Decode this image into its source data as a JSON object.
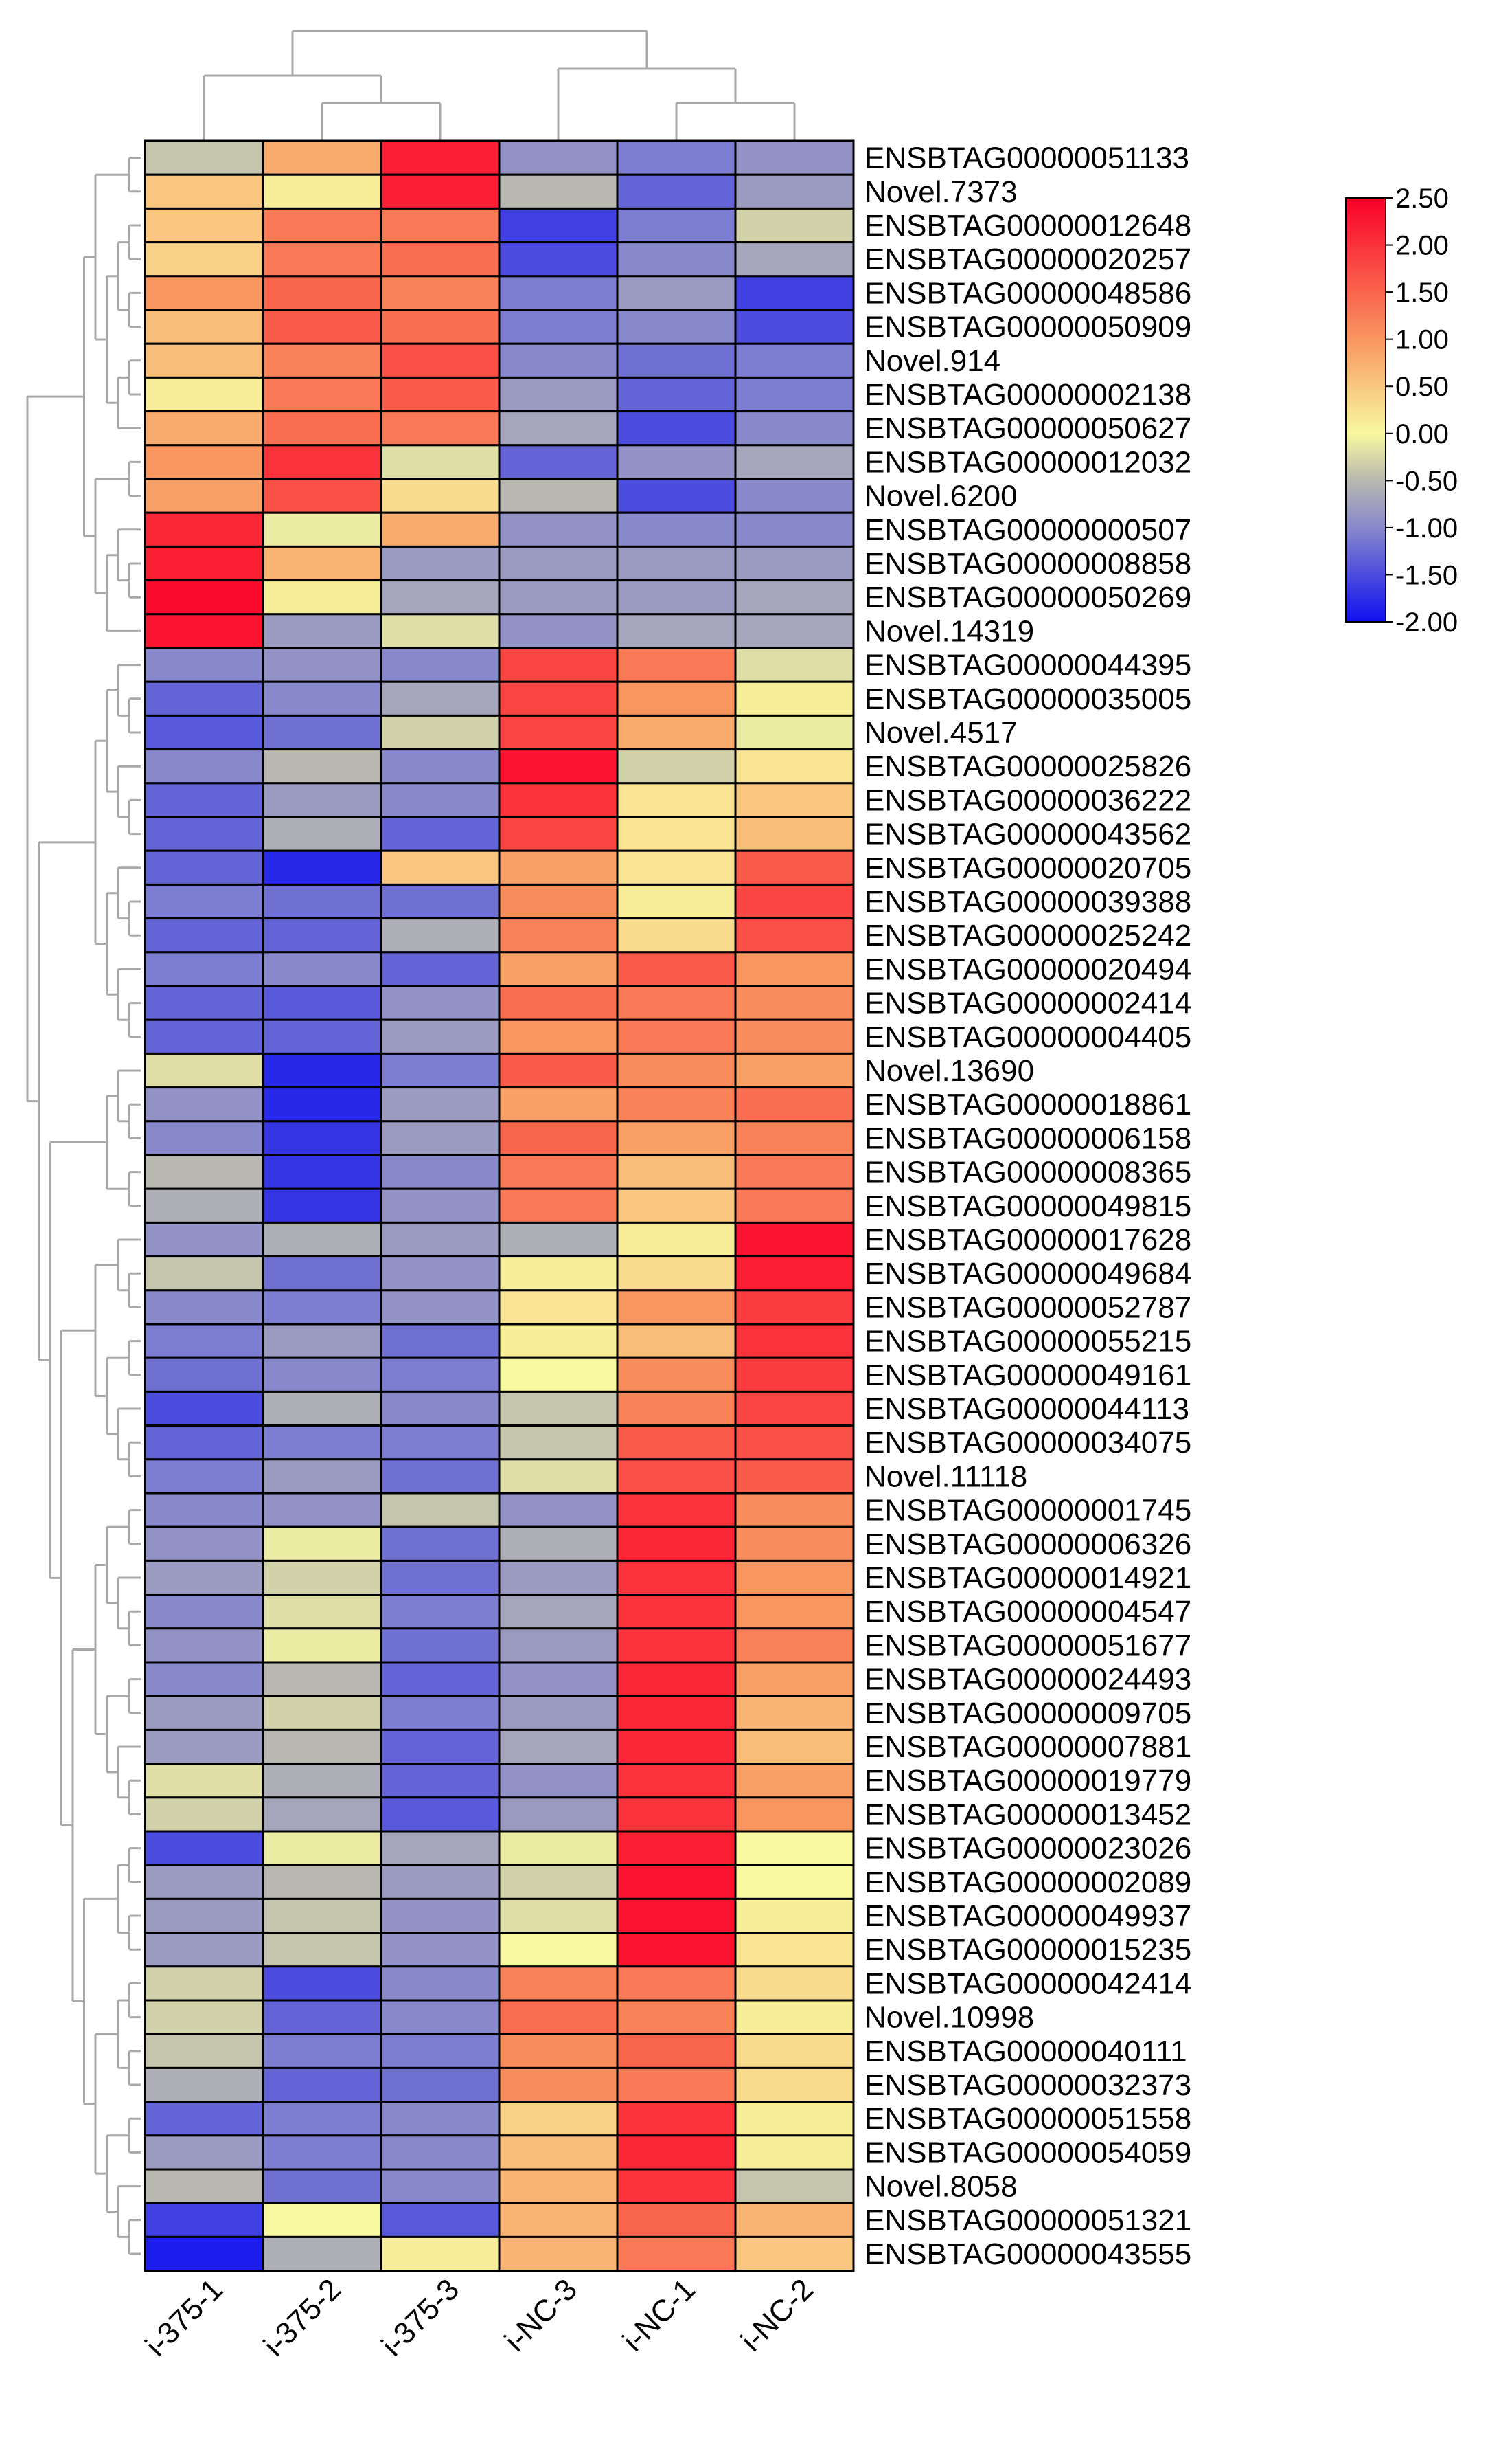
{
  "chart_data": {
    "type": "heatmap",
    "columns": [
      "i-375-1",
      "i-375-2",
      "i-375-3",
      "i-NC-3",
      "i-NC-1",
      "i-NC-2"
    ],
    "rows": [
      "ENSBTAG00000051133",
      "Novel.7373",
      "ENSBTAG00000012648",
      "ENSBTAG00000020257",
      "ENSBTAG00000048586",
      "ENSBTAG00000050909",
      "Novel.914",
      "ENSBTAG00000002138",
      "ENSBTAG00000050627",
      "ENSBTAG00000012032",
      "Novel.6200",
      "ENSBTAG00000000507",
      "ENSBTAG00000008858",
      "ENSBTAG00000050269",
      "Novel.14319",
      "ENSBTAG00000044395",
      "ENSBTAG00000035005",
      "Novel.4517",
      "ENSBTAG00000025826",
      "ENSBTAG00000036222",
      "ENSBTAG00000043562",
      "ENSBTAG00000020705",
      "ENSBTAG00000039388",
      "ENSBTAG00000025242",
      "ENSBTAG00000020494",
      "ENSBTAG00000002414",
      "ENSBTAG00000004405",
      "Novel.13690",
      "ENSBTAG00000018861",
      "ENSBTAG00000006158",
      "ENSBTAG00000008365",
      "ENSBTAG00000049815",
      "ENSBTAG00000017628",
      "ENSBTAG00000049684",
      "ENSBTAG00000052787",
      "ENSBTAG00000055215",
      "ENSBTAG00000049161",
      "ENSBTAG00000044113",
      "ENSBTAG00000034075",
      "Novel.11118",
      "ENSBTAG00000001745",
      "ENSBTAG00000006326",
      "ENSBTAG00000014921",
      "ENSBTAG00000004547",
      "ENSBTAG00000051677",
      "ENSBTAG00000024493",
      "ENSBTAG00000009705",
      "ENSBTAG00000007881",
      "ENSBTAG00000019779",
      "ENSBTAG00000013452",
      "ENSBTAG00000023026",
      "ENSBTAG00000002089",
      "ENSBTAG00000049937",
      "ENSBTAG00000015235",
      "ENSBTAG00000042414",
      "Novel.10998",
      "ENSBTAG00000040111",
      "ENSBTAG00000032373",
      "ENSBTAG00000051558",
      "ENSBTAG00000054059",
      "Novel.8058",
      "ENSBTAG00000051321",
      "ENSBTAG00000043555"
    ],
    "values": [
      [
        -0.4,
        0.8,
        2.2,
        -0.9,
        -1.1,
        -0.9
      ],
      [
        0.5,
        0.1,
        2.2,
        -0.5,
        -1.3,
        -0.8
      ],
      [
        0.5,
        1.3,
        1.3,
        -1.6,
        -1.1,
        -0.3
      ],
      [
        0.4,
        1.3,
        1.4,
        -1.5,
        -1.0,
        -0.7
      ],
      [
        1.0,
        1.5,
        1.2,
        -1.1,
        -0.8,
        -1.6
      ],
      [
        0.6,
        1.6,
        1.4,
        -1.1,
        -1.0,
        -1.5
      ],
      [
        0.6,
        1.2,
        1.7,
        -1.0,
        -1.2,
        -1.1
      ],
      [
        0.1,
        1.3,
        1.6,
        -0.8,
        -1.3,
        -1.1
      ],
      [
        0.8,
        1.4,
        1.3,
        -0.7,
        -1.5,
        -1.0
      ],
      [
        1.0,
        2.0,
        -0.2,
        -1.3,
        -0.9,
        -0.7
      ],
      [
        0.9,
        1.7,
        0.3,
        -0.5,
        -1.5,
        -1.0
      ],
      [
        2.1,
        -0.1,
        0.8,
        -0.9,
        -1.0,
        -1.0
      ],
      [
        2.2,
        0.7,
        -0.8,
        -0.8,
        -0.8,
        -0.8
      ],
      [
        2.4,
        0.1,
        -0.7,
        -0.8,
        -0.8,
        -0.7
      ],
      [
        2.3,
        -0.8,
        -0.2,
        -0.9,
        -0.7,
        -0.7
      ],
      [
        -1.0,
        -0.9,
        -1.0,
        1.8,
        1.3,
        -0.2
      ],
      [
        -1.3,
        -1.0,
        -0.7,
        1.8,
        1.0,
        0.1
      ],
      [
        -1.4,
        -1.2,
        -0.3,
        1.8,
        0.8,
        -0.1
      ],
      [
        -1.0,
        -0.5,
        -1.0,
        2.3,
        -0.3,
        0.2
      ],
      [
        -1.3,
        -0.8,
        -1.0,
        2.0,
        0.2,
        0.5
      ],
      [
        -1.3,
        -0.6,
        -1.3,
        1.8,
        0.2,
        0.6
      ],
      [
        -1.3,
        -1.8,
        0.5,
        0.9,
        0.2,
        1.6
      ],
      [
        -1.1,
        -1.2,
        -1.2,
        1.1,
        0.1,
        1.8
      ],
      [
        -1.3,
        -1.3,
        -0.6,
        1.2,
        0.3,
        1.7
      ],
      [
        -1.1,
        -1.0,
        -1.3,
        0.9,
        1.6,
        1.0
      ],
      [
        -1.3,
        -1.4,
        -0.9,
        1.4,
        1.3,
        1.1
      ],
      [
        -1.3,
        -1.3,
        -0.8,
        1.0,
        1.3,
        1.1
      ],
      [
        -0.2,
        -1.8,
        -1.1,
        1.6,
        1.1,
        0.9
      ],
      [
        -0.9,
        -1.8,
        -0.8,
        0.9,
        1.2,
        1.4
      ],
      [
        -1.0,
        -1.7,
        -0.8,
        1.5,
        0.9,
        1.2
      ],
      [
        -0.5,
        -1.7,
        -1.0,
        1.3,
        0.6,
        1.3
      ],
      [
        -0.6,
        -1.7,
        -0.9,
        1.3,
        0.5,
        1.3
      ],
      [
        -0.9,
        -0.6,
        -0.8,
        -0.6,
        0.1,
        2.3
      ],
      [
        -0.4,
        -1.2,
        -0.9,
        0.1,
        0.3,
        2.2
      ],
      [
        -1.0,
        -1.1,
        -0.9,
        0.2,
        1.0,
        1.9
      ],
      [
        -1.1,
        -0.8,
        -1.2,
        0.1,
        0.6,
        2.0
      ],
      [
        -1.2,
        -1.0,
        -1.1,
        0.0,
        1.1,
        1.9
      ],
      [
        -1.5,
        -0.6,
        -1.0,
        -0.4,
        1.2,
        1.8
      ],
      [
        -1.3,
        -1.1,
        -1.1,
        -0.4,
        1.6,
        1.7
      ],
      [
        -1.1,
        -0.8,
        -1.2,
        -0.2,
        1.7,
        1.6
      ],
      [
        -1.0,
        -0.9,
        -0.4,
        -0.9,
        2.0,
        1.1
      ],
      [
        -0.9,
        -0.1,
        -1.2,
        -0.6,
        2.1,
        1.1
      ],
      [
        -0.8,
        -0.3,
        -1.2,
        -0.8,
        2.0,
        1.0
      ],
      [
        -1.0,
        -0.2,
        -1.1,
        -0.7,
        2.0,
        1.0
      ],
      [
        -0.9,
        -0.1,
        -1.2,
        -0.8,
        2.0,
        1.2
      ],
      [
        -1.0,
        -0.5,
        -1.3,
        -0.9,
        2.1,
        0.9
      ],
      [
        -0.8,
        -0.3,
        -1.1,
        -0.8,
        2.1,
        0.7
      ],
      [
        -0.8,
        -0.5,
        -1.3,
        -0.7,
        2.1,
        0.6
      ],
      [
        -0.2,
        -0.6,
        -1.3,
        -0.9,
        2.0,
        0.9
      ],
      [
        -0.3,
        -0.7,
        -1.4,
        -0.8,
        2.0,
        1.0
      ],
      [
        -1.5,
        -0.1,
        -0.7,
        -0.1,
        2.2,
        0.0
      ],
      [
        -0.8,
        -0.5,
        -0.8,
        -0.3,
        2.3,
        0.0
      ],
      [
        -0.8,
        -0.4,
        -0.9,
        -0.2,
        2.3,
        0.1
      ],
      [
        -0.8,
        -0.4,
        -0.9,
        0.0,
        2.3,
        0.2
      ],
      [
        -0.3,
        -1.5,
        -1.0,
        1.2,
        1.3,
        0.3
      ],
      [
        -0.3,
        -1.3,
        -1.0,
        1.4,
        1.2,
        0.1
      ],
      [
        -0.4,
        -1.1,
        -1.1,
        1.1,
        1.5,
        0.3
      ],
      [
        -0.6,
        -1.3,
        -1.2,
        1.1,
        1.3,
        0.3
      ],
      [
        -1.3,
        -1.1,
        -1.0,
        0.4,
        2.0,
        0.1
      ],
      [
        -0.8,
        -1.1,
        -1.0,
        0.6,
        2.1,
        0.1
      ],
      [
        -0.5,
        -1.2,
        -1.0,
        0.7,
        2.0,
        -0.4
      ],
      [
        -1.6,
        0.0,
        -1.4,
        0.7,
        1.5,
        0.7
      ],
      [
        -1.9,
        -0.6,
        0.1,
        0.7,
        1.3,
        0.5
      ]
    ],
    "color_scale": {
      "min": -2.0,
      "max": 2.5,
      "stops": [
        {
          "value": -2.0,
          "color": "#1010f0"
        },
        {
          "value": -1.0,
          "color": "#8888cc"
        },
        {
          "value": -0.5,
          "color": "#b8b8b0"
        },
        {
          "value": 0.0,
          "color": "#f8f8a0"
        },
        {
          "value": 1.0,
          "color": "#f99660"
        },
        {
          "value": 2.5,
          "color": "#fa0028"
        }
      ]
    },
    "legend": {
      "position": "top-right",
      "ticks": [
        "2.50",
        "2.00",
        "1.50",
        "1.00",
        "0.50",
        "0.00",
        "-0.50",
        "-1.00",
        "-1.50",
        "-2.00"
      ],
      "tick_values": [
        2.5,
        2.0,
        1.5,
        1.0,
        0.5,
        0.0,
        -0.5,
        -1.0,
        -1.5,
        -2.0
      ]
    },
    "column_dendrogram": "top",
    "row_dendrogram": "left"
  }
}
